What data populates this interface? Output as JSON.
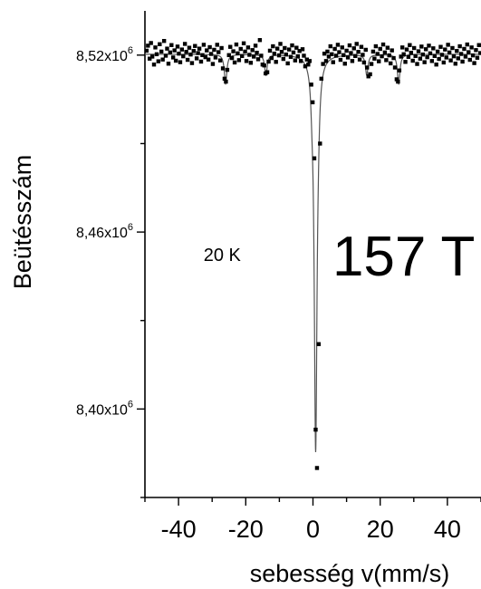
{
  "chart_data": {
    "type": "scatter",
    "xlabel": "sebesség v(mm/s)",
    "ylabel": "Beütésszám",
    "xlim": [
      -50,
      50
    ],
    "ylim": [
      8.37,
      8.535
    ],
    "grid": false,
    "x_ticks": [
      {
        "value": -40,
        "label": "-40"
      },
      {
        "value": -20,
        "label": "-20"
      },
      {
        "value": 0,
        "label": "0"
      },
      {
        "value": 20,
        "label": "20"
      },
      {
        "value": 40,
        "label": "40"
      }
    ],
    "y_ticks": [
      {
        "value": 8.52,
        "label": "8,52x10",
        "exp": "6"
      },
      {
        "value": 8.46,
        "label": "8,46x10",
        "exp": "6"
      },
      {
        "value": 8.4,
        "label": "8,40x10",
        "exp": "6"
      }
    ],
    "y_unit": "counts x10^6",
    "annotations": [
      {
        "text": "20 K",
        "x": -27,
        "y": 8.452
      },
      {
        "text": "157 T",
        "x": 27,
        "y": 8.452
      }
    ],
    "fit": {
      "baseline": 8.5203,
      "lines": [
        {
          "center": -26,
          "depth": 0.01,
          "width": 0.9
        },
        {
          "center": -14,
          "depth": 0.007,
          "width": 0.9
        },
        {
          "center": -0.3,
          "depth": 0.006,
          "width": 0.8
        },
        {
          "center": 0.8,
          "depth": 0.133,
          "width": 1.0
        },
        {
          "center": 1.6,
          "depth": 0.006,
          "width": 0.8
        },
        {
          "center": 16,
          "depth": 0.007,
          "width": 0.9
        },
        {
          "center": 25.5,
          "depth": 0.01,
          "width": 0.9
        }
      ]
    },
    "series": [
      {
        "marker": "square",
        "x": [
          -49.5,
          -49.1,
          -48.6,
          -48.2,
          -47.8,
          -47.3,
          -46.9,
          -46.5,
          -46.0,
          -45.6,
          -45.1,
          -44.7,
          -44.3,
          -43.8,
          -43.4,
          -43.0,
          -42.5,
          -42.1,
          -41.6,
          -41.2,
          -40.8,
          -40.3,
          -39.9,
          -39.5,
          -39.0,
          -38.6,
          -38.1,
          -37.7,
          -37.3,
          -36.8,
          -36.4,
          -36.0,
          -35.5,
          -35.1,
          -34.6,
          -34.2,
          -33.8,
          -33.3,
          -32.9,
          -32.5,
          -32.0,
          -31.6,
          -31.1,
          -30.7,
          -30.3,
          -29.8,
          -29.4,
          -29.0,
          -28.5,
          -28.1,
          -27.6,
          -27.2,
          -26.8,
          -26.3,
          -25.9,
          -25.5,
          -25.0,
          -24.6,
          -24.1,
          -23.7,
          -23.3,
          -22.8,
          -22.4,
          -22.0,
          -21.5,
          -21.1,
          -20.6,
          -20.2,
          -19.8,
          -19.3,
          -18.9,
          -18.5,
          -18.0,
          -17.6,
          -17.1,
          -16.7,
          -16.3,
          -15.8,
          -15.4,
          -15.0,
          -14.5,
          -14.1,
          -13.6,
          -13.2,
          -12.8,
          -12.3,
          -11.9,
          -11.5,
          -11.0,
          -10.6,
          -10.1,
          -9.7,
          -9.3,
          -8.8,
          -8.4,
          -8.0,
          -7.5,
          -7.1,
          -6.6,
          -6.2,
          -5.8,
          -5.3,
          -4.9,
          -4.5,
          -4.0,
          -3.6,
          -3.1,
          -2.7,
          -2.3,
          -1.8,
          -1.4,
          -1.0,
          -0.5,
          -0.1,
          0.4,
          0.8,
          1.2,
          1.7,
          2.1,
          2.5,
          3.0,
          3.4,
          3.9,
          4.3,
          4.7,
          5.2,
          5.6,
          6.0,
          6.5,
          6.9,
          7.4,
          7.8,
          8.2,
          8.7,
          9.1,
          9.5,
          10.0,
          10.4,
          10.9,
          11.3,
          11.7,
          12.2,
          12.6,
          13.0,
          13.5,
          13.9,
          14.4,
          14.8,
          15.2,
          15.7,
          16.1,
          16.5,
          17.0,
          17.4,
          17.9,
          18.3,
          18.7,
          19.2,
          19.6,
          20.0,
          20.5,
          20.9,
          21.4,
          21.8,
          22.2,
          22.7,
          23.1,
          23.5,
          24.0,
          24.4,
          24.9,
          25.3,
          25.7,
          26.2,
          26.6,
          27.0,
          27.5,
          27.9,
          28.4,
          28.8,
          29.2,
          29.7,
          30.1,
          30.5,
          31.0,
          31.4,
          31.9,
          32.3,
          32.7,
          33.2,
          33.6,
          34.0,
          34.5,
          34.9,
          35.4,
          35.8,
          36.2,
          36.7,
          37.1,
          37.5,
          38.0,
          38.4,
          38.9,
          39.3,
          39.7,
          40.2,
          40.6,
          41.0,
          41.5,
          41.9,
          42.4,
          42.8,
          43.2,
          43.7,
          44.1,
          44.5,
          45.0,
          45.4,
          45.9,
          46.3,
          46.7,
          47.2,
          47.6,
          48.0,
          48.5,
          48.9,
          49.4,
          49.8
        ],
        "y": [
          8.5215,
          8.5232,
          8.5188,
          8.5241,
          8.5195,
          8.5168,
          8.5226,
          8.5203,
          8.5179,
          8.5237,
          8.5212,
          8.5185,
          8.5248,
          8.5198,
          8.5222,
          8.5171,
          8.5209,
          8.5234,
          8.5192,
          8.5216,
          8.5181,
          8.5229,
          8.5205,
          8.5176,
          8.5219,
          8.5196,
          8.5238,
          8.5211,
          8.5184,
          8.5225,
          8.5202,
          8.5173,
          8.5214,
          8.5231,
          8.5189,
          8.5207,
          8.5222,
          8.5178,
          8.52,
          8.5235,
          8.5193,
          8.5216,
          8.5185,
          8.5227,
          8.5204,
          8.517,
          8.5218,
          8.5192,
          8.5235,
          8.521,
          8.5182,
          8.5224,
          8.5155,
          8.512,
          8.511,
          8.515,
          8.52,
          8.5228,
          8.519,
          8.5213,
          8.5175,
          8.5236,
          8.5206,
          8.5183,
          8.5221,
          8.5197,
          8.524,
          8.5212,
          8.518,
          8.5226,
          8.5201,
          8.5174,
          8.5217,
          8.5195,
          8.5232,
          8.5208,
          8.5186,
          8.5251,
          8.5198,
          8.5168,
          8.5165,
          8.5138,
          8.5142,
          8.5178,
          8.5215,
          8.519,
          8.523,
          8.5205,
          8.5177,
          8.5222,
          8.5199,
          8.5238,
          8.5211,
          8.5187,
          8.5224,
          8.5202,
          8.5172,
          8.5219,
          8.5194,
          8.5233,
          8.5209,
          8.5182,
          8.5225,
          8.5196,
          8.5214,
          8.518,
          8.522,
          8.5198,
          8.5162,
          8.5185,
          8.5168,
          8.518,
          8.51,
          8.504,
          8.485,
          8.393,
          8.38,
          8.422,
          8.49,
          8.512,
          8.517,
          8.5205,
          8.518,
          8.5212,
          8.5195,
          8.523,
          8.5203,
          8.5176,
          8.5221,
          8.5198,
          8.5235,
          8.521,
          8.5184,
          8.5226,
          8.52,
          8.5171,
          8.5215,
          8.5192,
          8.5233,
          8.5207,
          8.518,
          8.5223,
          8.5197,
          8.5238,
          8.5211,
          8.5185,
          8.5228,
          8.5201,
          8.5175,
          8.5218,
          8.5158,
          8.5128,
          8.5135,
          8.517,
          8.5212,
          8.5188,
          8.523,
          8.5204,
          8.5179,
          8.5221,
          8.5196,
          8.5236,
          8.5209,
          8.5183,
          8.5225,
          8.5199,
          8.5172,
          8.5216,
          8.519,
          8.5158,
          8.5118,
          8.511,
          8.5148,
          8.5195,
          8.5226,
          8.5203,
          8.5177,
          8.5219,
          8.5194,
          8.5234,
          8.5208,
          8.5181,
          8.5224,
          8.5197,
          8.517,
          8.5213,
          8.5188,
          8.5229,
          8.5202,
          8.5176,
          8.522,
          8.5193,
          8.5232,
          8.5206,
          8.518,
          8.5223,
          8.5197,
          8.5168,
          8.5212,
          8.5187,
          8.5228,
          8.5201,
          8.5175,
          8.5219,
          8.5192,
          8.5235,
          8.5209,
          8.5182,
          8.5224,
          8.5196,
          8.5171,
          8.5214,
          8.5189,
          8.523,
          8.5204,
          8.5178,
          8.5221,
          8.5195,
          8.5236,
          8.521,
          8.5184,
          8.5226,
          8.5199,
          8.5173,
          8.5217,
          8.5191,
          8.5234,
          8.5207
        ]
      }
    ]
  }
}
